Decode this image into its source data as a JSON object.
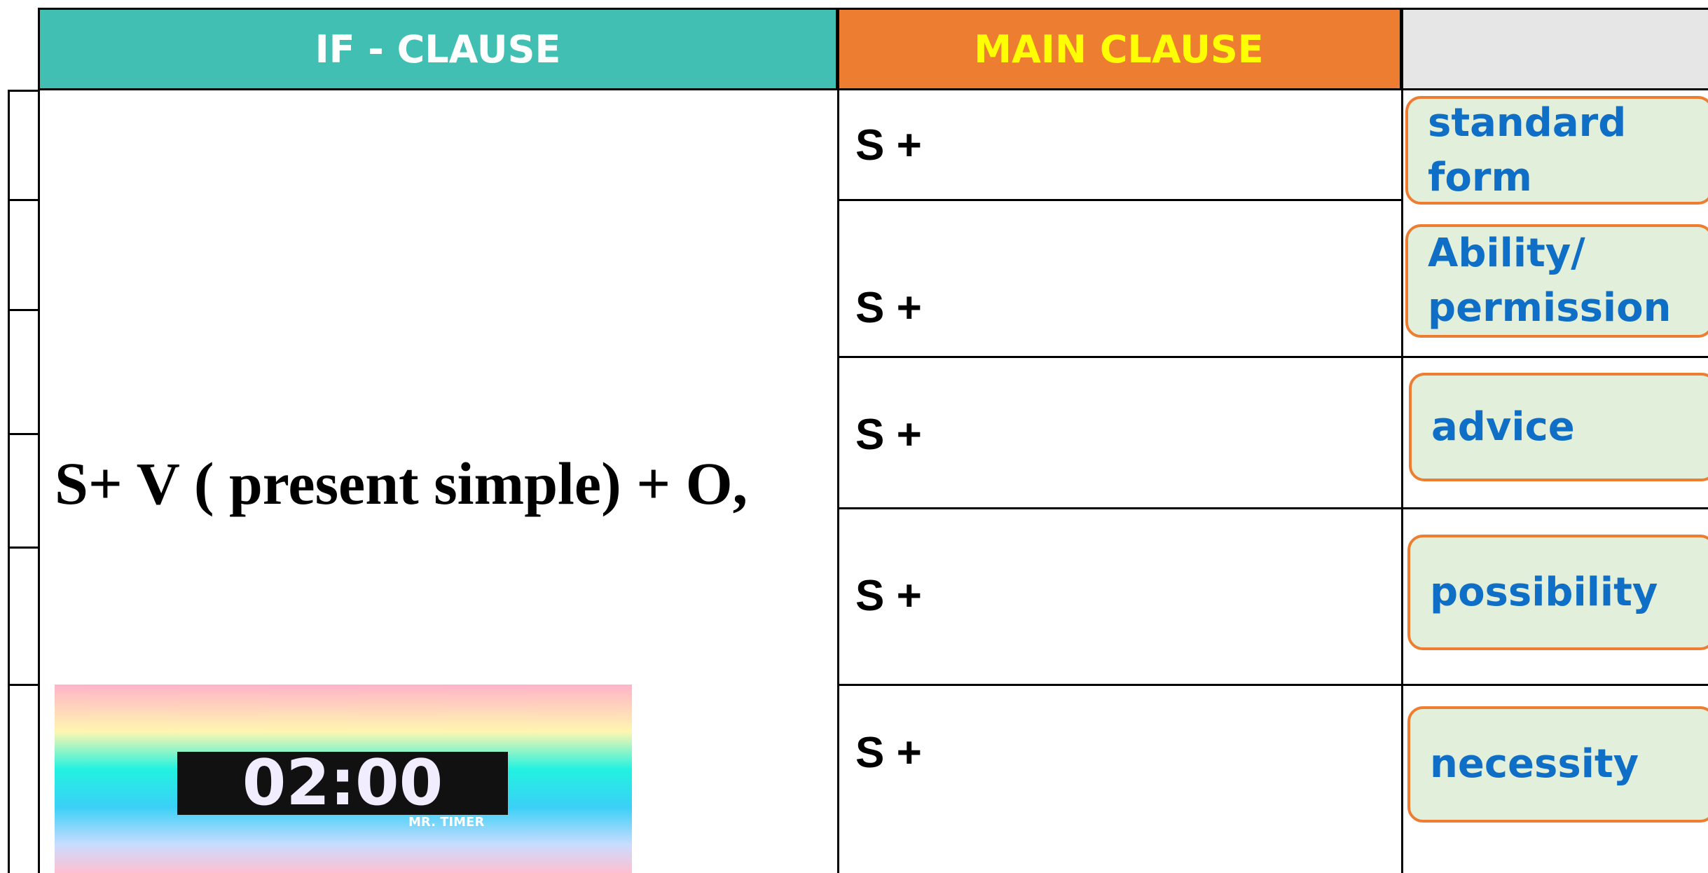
{
  "header": {
    "columns": [
      "IF - CLAUSE",
      "MAIN CLAUSE"
    ]
  },
  "if_clause": "S+ V ( present simple) + O,",
  "main_clause": [
    "S +",
    "S +",
    "S +",
    "S +",
    "S +"
  ],
  "labels": [
    [
      "standard",
      "form"
    ],
    [
      "Ability/",
      "permission"
    ],
    [
      "advice"
    ],
    [
      "possibility"
    ],
    [
      "necessity"
    ]
  ],
  "timer": {
    "time": "02:00",
    "brand": "MR. TIMER"
  }
}
